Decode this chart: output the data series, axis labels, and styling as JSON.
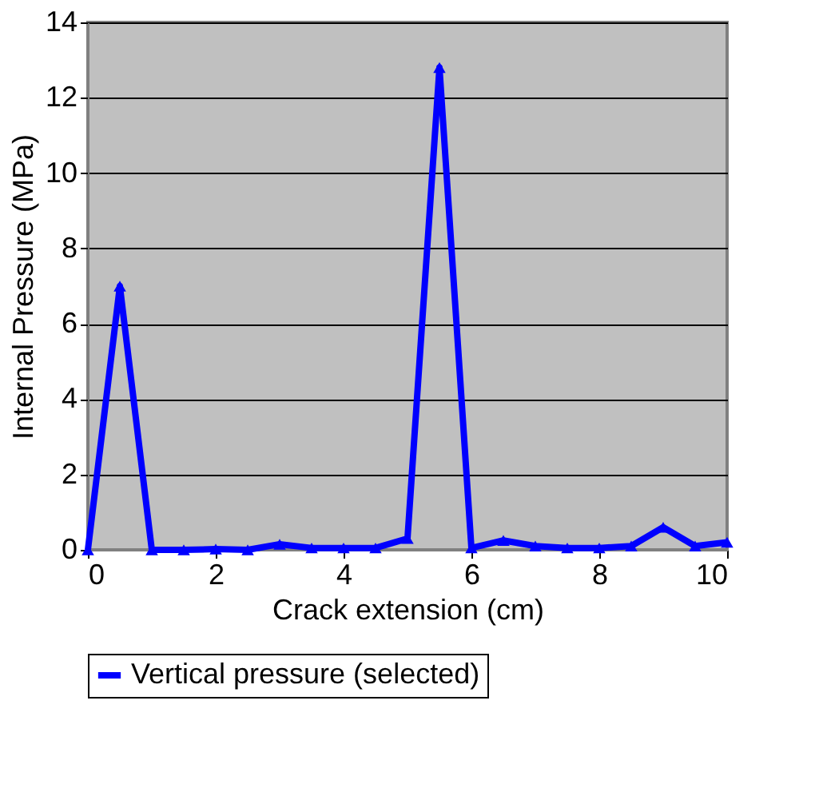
{
  "chart_data": {
    "type": "line",
    "xlabel": "Crack extension (cm)",
    "ylabel": "Internal Pressure (MPa)",
    "x": [
      0,
      0.5,
      1,
      1.5,
      2,
      2.5,
      3,
      3.5,
      4,
      4.5,
      5,
      5.5,
      6,
      6.5,
      7,
      7.5,
      8,
      8.5,
      9,
      9.5,
      10
    ],
    "series": [
      {
        "name": "Vertical pressure (selected)",
        "color": "#0000ff",
        "values": [
          0,
          7.0,
          0,
          0,
          0.02,
          0,
          0.15,
          0.05,
          0.05,
          0.05,
          0.3,
          12.8,
          0.05,
          0.25,
          0.1,
          0.05,
          0.05,
          0.1,
          0.6,
          0.1,
          0.2
        ]
      }
    ],
    "xlim": [
      0,
      10
    ],
    "xticks": [
      0,
      2,
      4,
      6,
      8,
      10
    ],
    "ylim": [
      0,
      14
    ],
    "yticks": [
      0,
      2,
      4,
      6,
      8,
      10,
      12,
      14
    ],
    "grid": "y",
    "legend": "bottom",
    "marker": "triangle",
    "line_style": "solid"
  }
}
